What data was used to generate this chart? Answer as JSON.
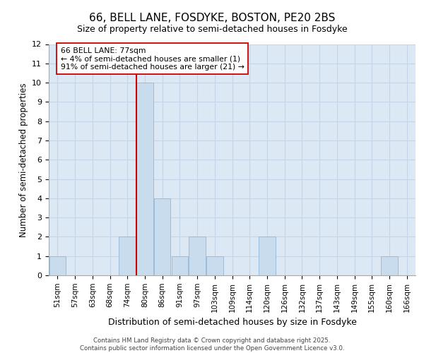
{
  "title_line1": "66, BELL LANE, FOSDYKE, BOSTON, PE20 2BS",
  "title_line2": "Size of property relative to semi-detached houses in Fosdyke",
  "xlabel": "Distribution of semi-detached houses by size in Fosdyke",
  "ylabel": "Number of semi-detached properties",
  "footnote": "Contains HM Land Registry data © Crown copyright and database right 2025.\nContains public sector information licensed under the Open Government Licence v3.0.",
  "categories": [
    "51sqm",
    "57sqm",
    "63sqm",
    "68sqm",
    "74sqm",
    "80sqm",
    "86sqm",
    "91sqm",
    "97sqm",
    "103sqm",
    "109sqm",
    "114sqm",
    "120sqm",
    "126sqm",
    "132sqm",
    "137sqm",
    "143sqm",
    "149sqm",
    "155sqm",
    "160sqm",
    "166sqm"
  ],
  "values": [
    1,
    0,
    0,
    0,
    2,
    10,
    4,
    1,
    2,
    1,
    0,
    0,
    2,
    0,
    0,
    0,
    0,
    0,
    0,
    1,
    0
  ],
  "bar_color": "#c9dcee",
  "bar_edge_color": "#9bbdda",
  "grid_color": "#c5d5e8",
  "background_color": "#dde8f5",
  "annotation_text": "66 BELL LANE: 77sqm\n← 4% of semi-detached houses are smaller (1)\n91% of semi-detached houses are larger (21) →",
  "annotation_box_color": "#ffffff",
  "annotation_box_edge": "#cc0000",
  "vline_color": "#cc0000",
  "vline_x_index": 4.5,
  "ylim": [
    0,
    12
  ],
  "yticks": [
    0,
    1,
    2,
    3,
    4,
    5,
    6,
    7,
    8,
    9,
    10,
    11,
    12
  ],
  "fig_bg": "#ffffff"
}
